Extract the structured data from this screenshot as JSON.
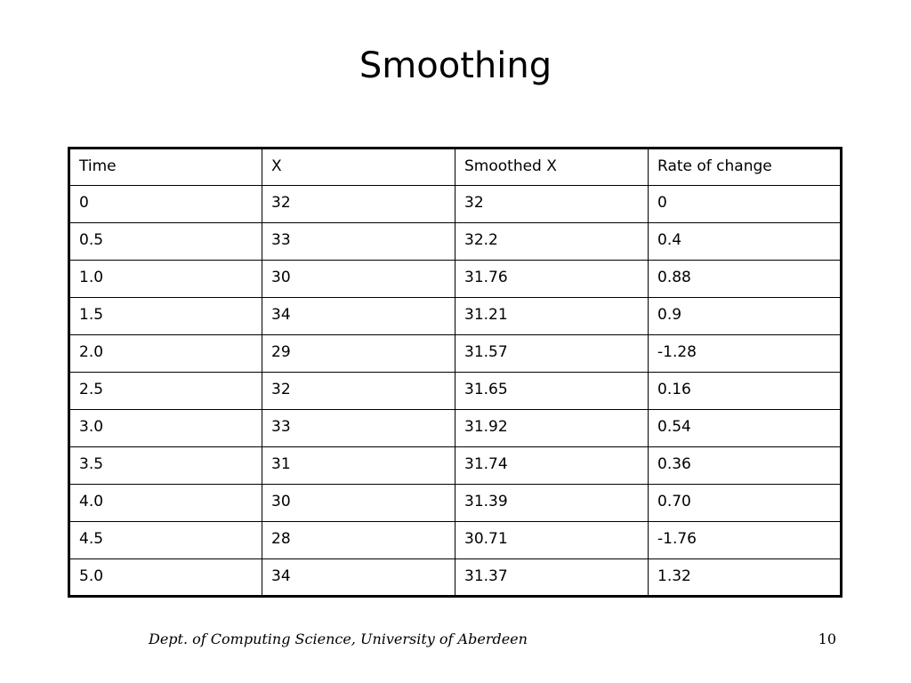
{
  "slide": {
    "title": "Smoothing",
    "footer": "Dept. of Computing Science, University of Aberdeen",
    "page_number": "10"
  },
  "table": {
    "headers": [
      "Time",
      "X",
      "Smoothed X",
      "Rate of change"
    ],
    "rows": [
      [
        "0",
        "32",
        "32",
        "0"
      ],
      [
        "0.5",
        "33",
        "32.2",
        "0.4"
      ],
      [
        "1.0",
        "30",
        "31.76",
        "0.88"
      ],
      [
        "1.5",
        "34",
        "31.21",
        "0.9"
      ],
      [
        "2.0",
        "29",
        "31.57",
        "-1.28"
      ],
      [
        "2.5",
        "32",
        "31.65",
        "0.16"
      ],
      [
        "3.0",
        "33",
        "31.92",
        "0.54"
      ],
      [
        "3.5",
        "31",
        "31.74",
        "0.36"
      ],
      [
        "4.0",
        "30",
        "31.39",
        "0.70"
      ],
      [
        "4.5",
        "28",
        "30.71",
        "-1.76"
      ],
      [
        "5.0",
        "34",
        "31.37",
        "1.32"
      ]
    ]
  }
}
